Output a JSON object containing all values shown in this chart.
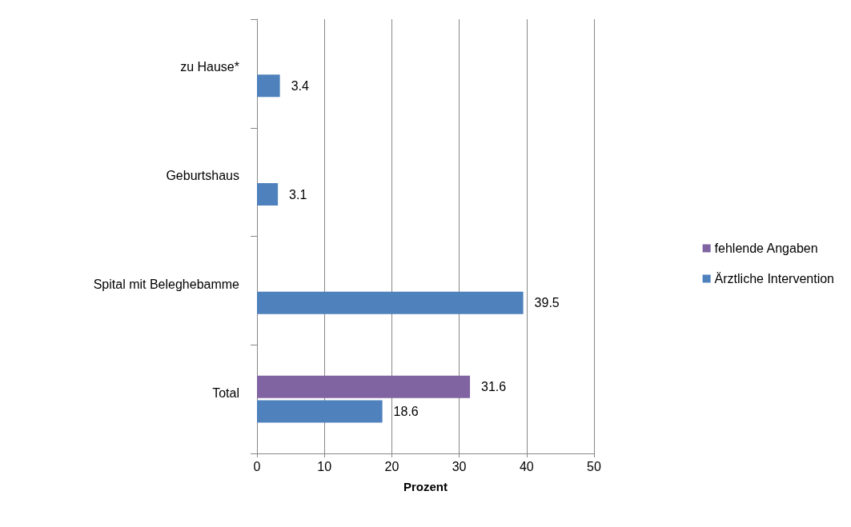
{
  "chart_data": {
    "type": "bar",
    "orientation": "horizontal",
    "categories": [
      "zu Hause*",
      "Geburtshaus",
      "Spital mit Beleghebamme",
      "Total"
    ],
    "series": [
      {
        "name": "fehlende Angaben",
        "color": "#8064a2",
        "values": [
          null,
          null,
          null,
          31.6
        ]
      },
      {
        "name": "Ärztliche Intervention",
        "color": "#4f81bd",
        "values": [
          3.4,
          3.1,
          39.5,
          18.6
        ]
      }
    ],
    "xlabel": "Prozent",
    "xlim": [
      0,
      50
    ],
    "xticks": [
      0,
      10,
      20,
      30,
      40,
      50
    ],
    "grid": "x",
    "legend": "right",
    "data_labels": true
  }
}
